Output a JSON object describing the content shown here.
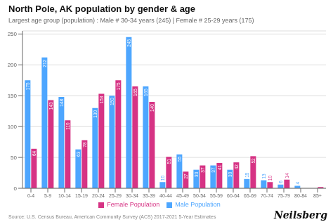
{
  "chart_data": {
    "type": "bar",
    "title": "North Pole, AK population by gender & age",
    "subtitle": "Largest age group (population) : Male # 30-34 years (245) | Female # 25-29 years (175)",
    "annotations": [
      "Source: U.S. Census Bureau, American Community Survey (ACS) 2017-2021 5-Year Estimates",
      "Neilsberg"
    ],
    "categories": [
      "0-4",
      "5-9",
      "10-14",
      "15-19",
      "20-24",
      "25-29",
      "30-34",
      "35-39",
      "40-44",
      "45-49",
      "50-54",
      "55-59",
      "60-64",
      "65-69",
      "70-74",
      "75-79",
      "80-84",
      "85+"
    ],
    "series": [
      {
        "name": "Male Population",
        "color": "#4da6ff",
        "values": [
          175,
          212,
          148,
          63,
          130,
          150,
          245,
          165,
          10,
          55,
          30,
          37,
          30,
          15,
          13,
          6,
          4,
          0
        ],
        "value_labels": [
          "175",
          "212",
          "148",
          "63",
          "130",
          "150",
          "245",
          "165",
          "10",
          "55",
          "30",
          "37",
          "30",
          "15",
          "13",
          "6",
          "4",
          null
        ]
      },
      {
        "name": "Female Population",
        "color": "#d63384",
        "values": [
          64,
          143,
          110,
          78,
          153,
          175,
          165,
          140,
          51,
          27,
          37,
          41,
          42,
          52,
          10,
          14,
          0,
          2
        ],
        "value_labels": [
          "64",
          "143",
          "110",
          "78",
          "153",
          "175",
          "165",
          "140",
          "51",
          "27",
          "37",
          "41",
          "42",
          "52",
          "10",
          "14",
          null,
          "2"
        ]
      }
    ],
    "ylim": [
      0,
      255
    ],
    "yticks": [
      0,
      50,
      100,
      150,
      200,
      250
    ],
    "grid": true,
    "legend": "bottom",
    "data_labels": true
  }
}
